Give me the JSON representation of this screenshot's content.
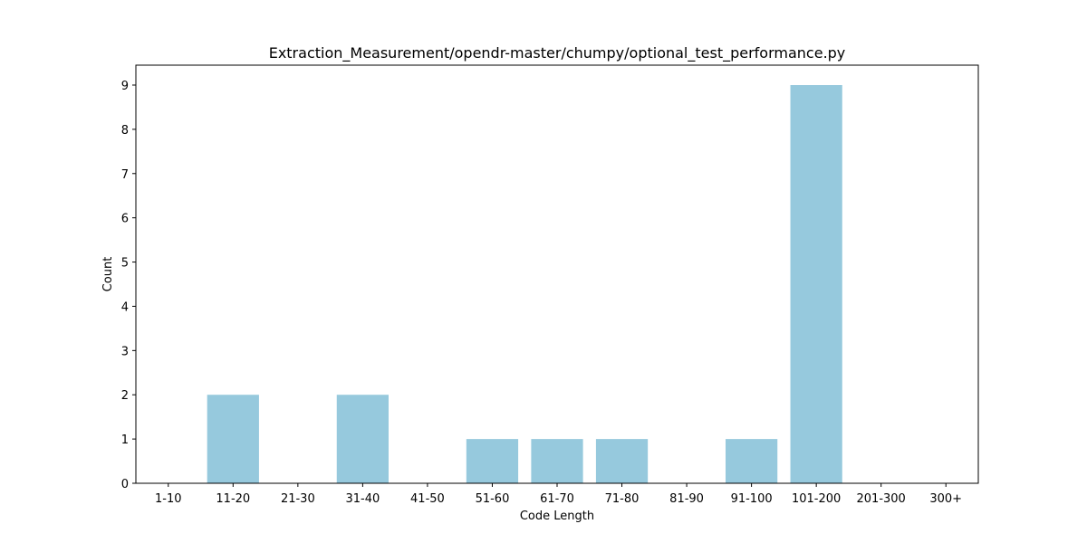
{
  "chart_data": {
    "type": "bar",
    "title": "Extraction_Measurement/opendr-master/chumpy/optional_test_performance.py",
    "xlabel": "Code Length",
    "ylabel": "Count",
    "categories": [
      "1-10",
      "11-20",
      "21-30",
      "31-40",
      "41-50",
      "51-60",
      "61-70",
      "71-80",
      "81-90",
      "91-100",
      "101-200",
      "201-300",
      "300+"
    ],
    "values": [
      0,
      2,
      0,
      2,
      0,
      1,
      1,
      1,
      0,
      1,
      9,
      0,
      0
    ],
    "ylim": [
      0,
      9.45
    ],
    "yticks": [
      0,
      1,
      2,
      3,
      4,
      5,
      6,
      7,
      8,
      9
    ],
    "grid": false,
    "legend": "none",
    "colors": {
      "bar": "#96c9dd"
    }
  }
}
